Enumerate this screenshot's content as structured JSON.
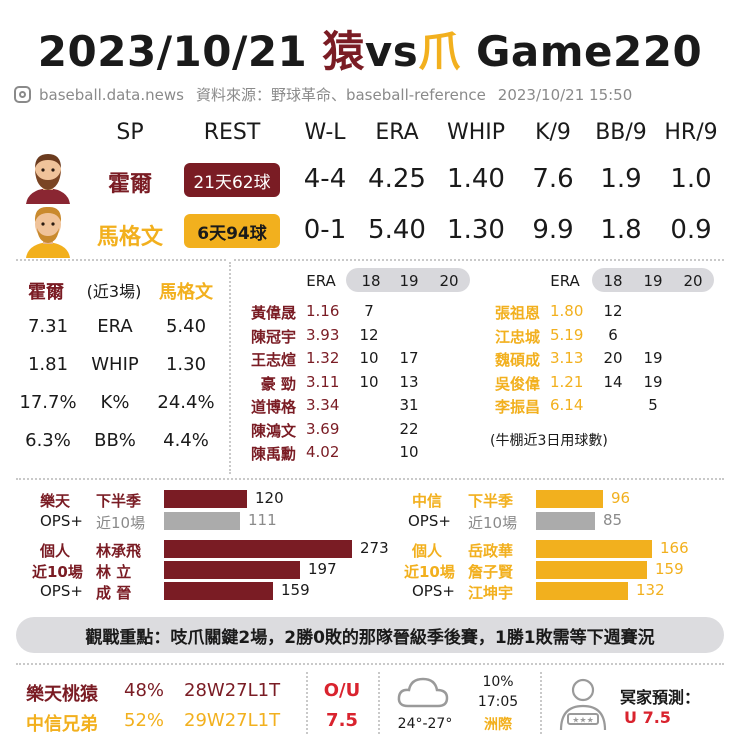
{
  "header": {
    "date": "2023/10/21",
    "team_a_char": "猿",
    "vs": "vs",
    "team_b_char": "爪",
    "game": "Game220"
  },
  "source": {
    "handle": "baseball.data.news",
    "label": "資料來源：野球革命、baseball-reference",
    "timestamp": "2023/10/21  15:50"
  },
  "sp_table": {
    "headers": [
      "SP",
      "REST",
      "W-L",
      "ERA",
      "WHIP",
      "K/9",
      "BB/9",
      "HR/9"
    ],
    "rows": [
      {
        "name": "霍爾",
        "rest": "21天62球",
        "wl": "4-4",
        "era": "4.25",
        "whip": "1.40",
        "k9": "7.6",
        "bb9": "1.9",
        "hr9": "1.0",
        "color": "#7a1c24"
      },
      {
        "name": "馬格文",
        "rest": "6天94球",
        "wl": "0-1",
        "era": "5.40",
        "whip": "1.30",
        "k9": "9.9",
        "bb9": "1.8",
        "hr9": "0.9",
        "color": "#f2b01e"
      }
    ]
  },
  "recent3": {
    "left_name": "霍爾",
    "mid_label": "(近3場)",
    "right_name": "馬格文",
    "rows": [
      {
        "left": "7.31",
        "stat": "ERA",
        "right": "5.40"
      },
      {
        "left": "1.81",
        "stat": "WHIP",
        "right": "1.30"
      },
      {
        "left": "17.7%",
        "stat": "K%",
        "right": "24.4%"
      },
      {
        "left": "6.3%",
        "stat": "BB%",
        "right": "4.4%"
      }
    ]
  },
  "bullpen_left": {
    "headers": [
      "ERA",
      "18",
      "19",
      "20"
    ],
    "rows": [
      {
        "name": "黃偉晟",
        "era": "1.16",
        "d18": "7",
        "d19": "",
        "d20": ""
      },
      {
        "name": "陳冠宇",
        "era": "3.93",
        "d18": "12",
        "d19": "",
        "d20": ""
      },
      {
        "name": "王志煊",
        "era": "1.32",
        "d18": "10",
        "d19": "17",
        "d20": ""
      },
      {
        "name": "豪 勁",
        "era": "3.11",
        "d18": "10",
        "d19": "13",
        "d20": ""
      },
      {
        "name": "道博格",
        "era": "3.34",
        "d18": "",
        "d19": "31",
        "d20": ""
      },
      {
        "name": "陳鴻文",
        "era": "3.69",
        "d18": "",
        "d19": "22",
        "d20": ""
      },
      {
        "name": "陳禹勳",
        "era": "4.02",
        "d18": "",
        "d19": "10",
        "d20": ""
      }
    ]
  },
  "bullpen_right": {
    "headers": [
      "ERA",
      "18",
      "19",
      "20"
    ],
    "rows": [
      {
        "name": "張祖恩",
        "era": "1.80",
        "d18": "12",
        "d19": "",
        "d20": ""
      },
      {
        "name": "江忠城",
        "era": "5.19",
        "d18": "6",
        "d19": "",
        "d20": ""
      },
      {
        "name": "魏碩成",
        "era": "3.13",
        "d18": "20",
        "d19": "19",
        "d20": ""
      },
      {
        "name": "吳俊偉",
        "era": "1.21",
        "d18": "14",
        "d19": "19",
        "d20": ""
      },
      {
        "name": "李振昌",
        "era": "6.14",
        "d18": "",
        "d19": "5",
        "d20": ""
      }
    ],
    "note": "(牛棚近3日用球數)"
  },
  "ops_left": {
    "team": "樂天",
    "ops_label": "OPS+",
    "team_rows": [
      {
        "label": "下半季",
        "value": 120,
        "kind": "main"
      },
      {
        "label": "近10場",
        "value": 111,
        "kind": "sub"
      }
    ],
    "ind_labels": [
      "個人",
      "近10場",
      "OPS+"
    ],
    "players": [
      {
        "name": "林承飛",
        "value": 273
      },
      {
        "name": "林 立",
        "value": 197
      },
      {
        "name": "成 晉",
        "value": 159
      }
    ]
  },
  "ops_right": {
    "team": "中信",
    "ops_label": "OPS+",
    "team_rows": [
      {
        "label": "下半季",
        "value": 96,
        "kind": "main"
      },
      {
        "label": "近10場",
        "value": 85,
        "kind": "sub"
      }
    ],
    "ind_labels": [
      "個人",
      "近10場",
      "OPS+"
    ],
    "players": [
      {
        "name": "岳政華",
        "value": 166
      },
      {
        "name": "詹子賢",
        "value": 159
      },
      {
        "name": "江坤宇",
        "value": 132
      }
    ]
  },
  "focus": "觀戰重點：吱爪關鍵2場，2勝0敗的那隊晉級季後賽，1勝1敗需等下週賽況",
  "bottom": {
    "teams": [
      {
        "name": "樂天桃猿",
        "pct": "48%",
        "record": "28W27L1T"
      },
      {
        "name": "中信兄弟",
        "pct": "52%",
        "record": "29W27L1T"
      }
    ],
    "ou_label": "O/U",
    "ou_value": "7.5",
    "weather": {
      "temp": "24°-27°",
      "rain": "10%",
      "time": "17:05",
      "venue": "洲際"
    },
    "pred_label": "冥家預測：",
    "pred_value": "U 7.5"
  },
  "colors": {
    "rakuten": "#7a1c24",
    "brothers": "#f2b01e",
    "grey_bar": "#ababab",
    "banner": "#dcdcdf"
  },
  "icons": [
    "instagram-icon",
    "bearded-man-avatar-icon",
    "blond-man-avatar-icon",
    "cloud-icon",
    "expert-avatar-icon"
  ]
}
